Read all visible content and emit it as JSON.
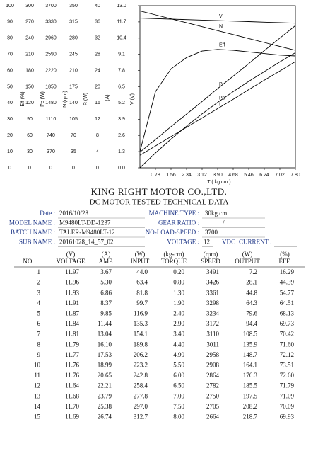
{
  "chart_data": {
    "type": "line",
    "x_label": "T ( kg.cm )",
    "x": [
      0,
      0.78,
      1.56,
      2.34,
      3.12,
      3.9,
      4.68,
      5.46,
      6.24,
      7.02,
      7.8
    ],
    "xlim": [
      0,
      7.8
    ],
    "xticks": [
      0.78,
      1.56,
      2.34,
      3.12,
      {
        "value": 3.9,
        "label": "3.90"
      },
      4.68,
      5.46,
      6.24,
      7.02,
      {
        "value": 7.8,
        "label": "7.80"
      }
    ],
    "axes": [
      {
        "title": "Eff (%)",
        "ylim": [
          0,
          100
        ],
        "yticks": [
          0,
          10,
          20,
          30,
          40,
          50,
          60,
          70,
          80,
          90,
          100
        ]
      },
      {
        "title": "Pe (W)",
        "ylim": [
          0,
          300
        ],
        "yticks": [
          0,
          30,
          60,
          90,
          120,
          150,
          180,
          210,
          240,
          270,
          300
        ]
      },
      {
        "title": "N (rpm)",
        "ylim": [
          0,
          3700
        ],
        "yticks": [
          0,
          370,
          740,
          1110,
          1480,
          1850,
          2220,
          2590,
          2960,
          3330,
          3700
        ]
      },
      {
        "title": "R (W)",
        "ylim": [
          0,
          350
        ],
        "yticks": [
          0,
          35,
          70,
          105,
          140,
          175,
          210,
          245,
          280,
          315,
          350
        ]
      },
      {
        "title": "I (A)",
        "ylim": [
          0,
          40
        ],
        "yticks": [
          0,
          4,
          8,
          12,
          16,
          20,
          24,
          28,
          32,
          36,
          40
        ]
      },
      {
        "title": "V (V)",
        "ylim": [
          0,
          13
        ],
        "yticks": [
          {
            "value": 0,
            "label": "0.0"
          },
          1.3,
          2.6,
          3.9,
          5.2,
          6.5,
          7.8,
          9.1,
          10.4,
          11.7,
          {
            "value": 13,
            "label": "13.0"
          }
        ]
      }
    ],
    "series": [
      {
        "name": "V",
        "axis": 5,
        "color": "#000000",
        "values": [
          12.0,
          11.96,
          11.92,
          11.88,
          11.84,
          11.8,
          11.76,
          11.72,
          11.68,
          11.64,
          11.6
        ]
      },
      {
        "name": "N",
        "axis": 2,
        "color": "#000000",
        "values": [
          3580,
          3490,
          3400,
          3310,
          3220,
          3130,
          3040,
          2950,
          2860,
          2770,
          2680
        ]
      },
      {
        "name": "Eff",
        "axis": 0,
        "color": "#000000",
        "values": [
          10,
          47,
          61,
          68,
          72,
          73,
          72.5,
          71.5,
          70.5,
          69.5,
          69
        ]
      },
      {
        "name": "Pi",
        "axis": 3,
        "color": "#000000",
        "values": [
          34,
          61,
          89,
          116,
          143,
          171,
          198,
          225,
          253,
          280,
          307
        ]
      },
      {
        "name": "Po",
        "axis": 1,
        "color": "#000000",
        "values": [
          0,
          27.5,
          53,
          77,
          100,
          121,
          141,
          160,
          178,
          196,
          213
        ]
      },
      {
        "name": "I",
        "axis": 4,
        "color": "#000000",
        "values": [
          3.1,
          5.4,
          7.7,
          10.0,
          12.3,
          14.6,
          16.9,
          19.3,
          21.6,
          23.9,
          26.2
        ]
      }
    ]
  },
  "header": {
    "title": "KING RIGHT MOTOR CO.,LTD.",
    "subtitle": "DC MOTOR TESTED TECHNICAL DATA"
  },
  "info": [
    {
      "left": {
        "label": "Date :",
        "value": "2016/10/28"
      },
      "right": {
        "label": "MACHINE TYPE :",
        "value": "30kg.cm"
      }
    },
    {
      "left": {
        "label": "MODEL NAME :",
        "value": "M9480LT-DD-1237"
      },
      "right": {
        "label": "GEAR RATIO :",
        "value": "/"
      }
    },
    {
      "left": {
        "label": "BATCH NAME :",
        "value": "TALER-M9480LT-12"
      },
      "right": {
        "label": "NO-LOAD-SPEED :",
        "value": "3700"
      }
    },
    {
      "left": {
        "label": "SUB NAME :",
        "value": "20161028_14_57_02"
      },
      "right": {
        "label": "VOLTAGE :",
        "value": "12",
        "unit": "VDC",
        "extra": "CURRENT :"
      }
    }
  ],
  "table": {
    "units": [
      "",
      "(V)",
      "(A)",
      "(W)",
      "(kg-cm)",
      "(rpm)",
      "(W)",
      "(%)"
    ],
    "columns": [
      "NO.",
      "VOLTAGE",
      "AMP.",
      "INPUT",
      "TORQUE",
      "SPEED",
      "OUTPUT",
      "EFF."
    ],
    "rows": [
      [
        "1",
        "11.97",
        "3.67",
        "44.0",
        "0.20",
        "3491",
        "7.2",
        "16.29"
      ],
      [
        "2",
        "11.96",
        "5.30",
        "63.4",
        "0.80",
        "3426",
        "28.1",
        "44.39"
      ],
      [
        "3",
        "11.93",
        "6.86",
        "81.8",
        "1.30",
        "3361",
        "44.8",
        "54.77"
      ],
      [
        "4",
        "11.91",
        "8.37",
        "99.7",
        "1.90",
        "3298",
        "64.3",
        "64.51"
      ],
      [
        "5",
        "11.87",
        "9.85",
        "116.9",
        "2.40",
        "3234",
        "79.6",
        "68.13"
      ],
      [
        "6",
        "11.84",
        "11.44",
        "135.3",
        "2.90",
        "3172",
        "94.4",
        "69.73"
      ],
      [
        "7",
        "11.81",
        "13.04",
        "154.1",
        "3.40",
        "3110",
        "108.5",
        "70.42"
      ],
      [
        "8",
        "11.79",
        "16.10",
        "189.8",
        "4.40",
        "3011",
        "135.9",
        "71.60"
      ],
      [
        "9",
        "11.77",
        "17.53",
        "206.2",
        "4.90",
        "2958",
        "148.7",
        "72.12"
      ],
      [
        "10",
        "11.76",
        "18.99",
        "223.2",
        "5.50",
        "2908",
        "164.1",
        "73.51"
      ],
      [
        "11",
        "11.76",
        "20.65",
        "242.8",
        "6.00",
        "2864",
        "176.3",
        "72.60"
      ],
      [
        "12",
        "11.64",
        "22.21",
        "258.4",
        "6.50",
        "2782",
        "185.5",
        "71.79"
      ],
      [
        "13",
        "11.68",
        "23.79",
        "277.8",
        "7.00",
        "2750",
        "197.5",
        "71.09"
      ],
      [
        "14",
        "11.70",
        "25.38",
        "297.0",
        "7.50",
        "2705",
        "208.2",
        "70.09"
      ],
      [
        "15",
        "11.69",
        "26.74",
        "312.7",
        "8.00",
        "2664",
        "218.7",
        "69.93"
      ]
    ]
  }
}
